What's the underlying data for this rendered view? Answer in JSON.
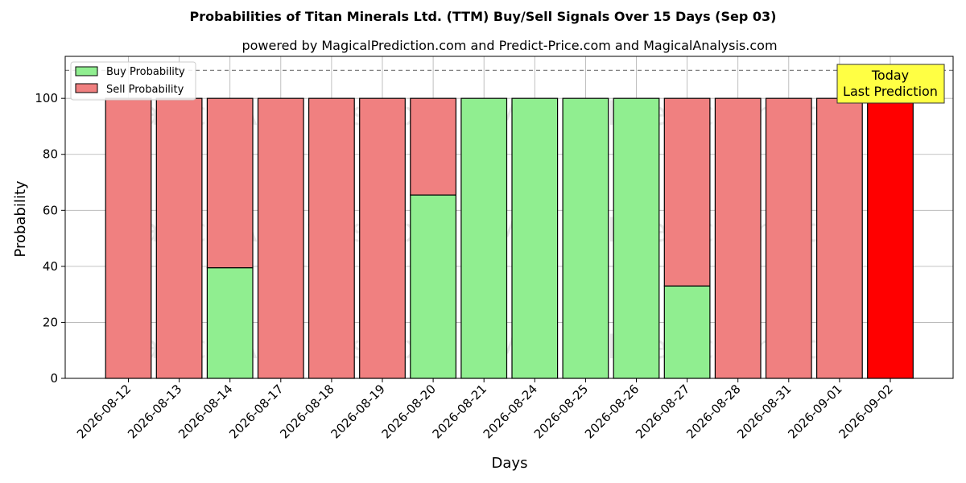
{
  "chart_data": {
    "type": "bar",
    "stacked": true,
    "title": "Probabilities of Titan Minerals Ltd. (TTM) Buy/Sell Signals Over 15 Days (Sep 03)",
    "subtitle": "powered by MagicalPrediction.com and Predict-Price.com and MagicalAnalysis.com",
    "xlabel": "Days",
    "ylabel": "Probability",
    "ylim": [
      0,
      115
    ],
    "yticks": [
      0,
      20,
      40,
      60,
      80,
      100
    ],
    "grid": true,
    "legend_position": "top-left",
    "reference_line": 110,
    "categories": [
      "2026-08-12",
      "2026-08-13",
      "2026-08-14",
      "2026-08-17",
      "2026-08-18",
      "2026-08-19",
      "2026-08-20",
      "2026-08-21",
      "2026-08-24",
      "2026-08-25",
      "2026-08-26",
      "2026-08-27",
      "2026-08-28",
      "2026-08-31",
      "2026-09-01",
      "2026-09-02"
    ],
    "series": [
      {
        "name": "Buy Probability",
        "color": "#90ee90",
        "values": [
          0,
          0,
          39.5,
          0,
          0,
          0,
          65.5,
          100,
          100,
          100,
          100,
          33,
          0,
          0,
          0,
          0
        ]
      },
      {
        "name": "Sell Probability",
        "color": "#f08080",
        "values": [
          100,
          100,
          60.5,
          100,
          100,
          100,
          34.5,
          0,
          0,
          0,
          0,
          67,
          100,
          100,
          100,
          100
        ]
      }
    ],
    "highlight": {
      "category": "2026-09-02",
      "color": "#ff0000"
    },
    "annotation": {
      "lines": [
        "Today",
        "Last Prediction"
      ],
      "background": "#ffff44"
    },
    "watermarks": [
      "MagicalAnalysis.com",
      "MagicalPrediction.com"
    ]
  }
}
